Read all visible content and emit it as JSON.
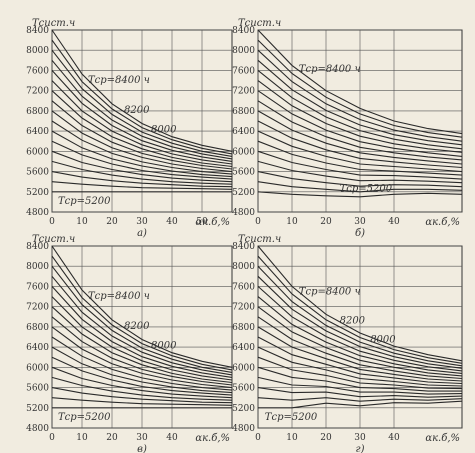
{
  "chart_data": [
    {
      "type": "line",
      "caption": "а)",
      "ylabel": "Тсист.ч",
      "xlabel": "αк.б,%",
      "x": [
        0,
        10,
        20,
        30,
        40,
        50,
        60
      ],
      "xlim": [
        0,
        60
      ],
      "ylim": [
        4800,
        8400
      ],
      "xticks": [
        0,
        10,
        20,
        30,
        40,
        50
      ],
      "yticks": [
        4800,
        5200,
        5600,
        6000,
        6400,
        6800,
        7200,
        7600,
        8000,
        8400
      ],
      "grid": true,
      "color": "#2a2a2a",
      "series": [
        {
          "name": "Tср=8400 ч",
          "values": [
            8400,
            7530,
            6940,
            6550,
            6290,
            6120,
            6000
          ]
        },
        {
          "name": "8200",
          "values": [
            8200,
            7380,
            6840,
            6470,
            6230,
            6060,
            5950
          ]
        },
        {
          "name": "8000",
          "values": [
            8000,
            7240,
            6730,
            6380,
            6160,
            6000,
            5900
          ]
        },
        {
          "values": [
            7800,
            7090,
            6620,
            6300,
            6090,
            5950,
            5850
          ]
        },
        {
          "values": [
            7600,
            6950,
            6510,
            6210,
            6020,
            5890,
            5800
          ]
        },
        {
          "values": [
            7400,
            6800,
            6400,
            6130,
            5950,
            5830,
            5750
          ]
        },
        {
          "values": [
            7200,
            6660,
            6290,
            6050,
            5880,
            5770,
            5700
          ]
        },
        {
          "values": [
            7000,
            6510,
            6180,
            5960,
            5820,
            5720,
            5650
          ]
        },
        {
          "values": [
            6800,
            6360,
            6070,
            5880,
            5750,
            5660,
            5600
          ]
        },
        {
          "values": [
            6600,
            6220,
            5960,
            5790,
            5680,
            5600,
            5550
          ]
        },
        {
          "values": [
            6400,
            6070,
            5850,
            5710,
            5610,
            5540,
            5500
          ]
        },
        {
          "values": [
            6200,
            5930,
            5750,
            5620,
            5540,
            5490,
            5450
          ]
        },
        {
          "values": [
            6000,
            5780,
            5640,
            5540,
            5470,
            5430,
            5400
          ]
        },
        {
          "values": [
            5800,
            5640,
            5530,
            5450,
            5400,
            5370,
            5350
          ]
        },
        {
          "values": [
            5600,
            5490,
            5420,
            5370,
            5340,
            5310,
            5300
          ]
        },
        {
          "values": [
            5400,
            5350,
            5310,
            5280,
            5270,
            5260,
            5250
          ]
        },
        {
          "name": "Tср=5200",
          "values": [
            5200,
            5200,
            5200,
            5200,
            5200,
            5200,
            5200
          ]
        }
      ]
    },
    {
      "type": "line",
      "caption": "б)",
      "ylabel": "Тсист.ч",
      "xlabel": "αк.б,%",
      "x": [
        0,
        10,
        20,
        30,
        40,
        50,
        60
      ],
      "xlim": [
        0,
        60
      ],
      "ylim": [
        4800,
        8400
      ],
      "xticks": [
        0,
        10,
        20,
        30,
        40
      ],
      "yticks": [
        4800,
        5200,
        5600,
        6000,
        6400,
        6800,
        7200,
        7600,
        8000,
        8400
      ],
      "grid": true,
      "color": "#2a2a2a",
      "series": [
        {
          "name": "Tср=8400 ч",
          "values": [
            8400,
            7700,
            7200,
            6850,
            6600,
            6450,
            6350
          ]
        },
        {
          "values": [
            8200,
            7540,
            7070,
            6740,
            6510,
            6370,
            6280
          ]
        },
        {
          "values": [
            8000,
            7380,
            6940,
            6630,
            6420,
            6290,
            6200
          ]
        },
        {
          "values": [
            7800,
            7220,
            6810,
            6520,
            6330,
            6210,
            6130
          ]
        },
        {
          "values": [
            7600,
            7060,
            6680,
            6410,
            6240,
            6130,
            6050
          ]
        },
        {
          "values": [
            7400,
            6900,
            6550,
            6300,
            6150,
            6050,
            5980
          ]
        },
        {
          "values": [
            7200,
            6740,
            6420,
            6190,
            6060,
            5970,
            5900
          ]
        },
        {
          "values": [
            7000,
            6580,
            6290,
            6080,
            5970,
            5890,
            5830
          ]
        },
        {
          "values": [
            6800,
            6420,
            6160,
            5970,
            5880,
            5810,
            5750
          ]
        },
        {
          "values": [
            6600,
            6260,
            6030,
            5860,
            5790,
            5730,
            5680
          ]
        },
        {
          "values": [
            6400,
            6100,
            5900,
            5750,
            5700,
            5650,
            5600
          ]
        },
        {
          "values": [
            6200,
            5940,
            5770,
            5640,
            5610,
            5570,
            5530
          ]
        },
        {
          "values": [
            6000,
            5780,
            5640,
            5530,
            5520,
            5490,
            5450
          ]
        },
        {
          "values": [
            5800,
            5620,
            5510,
            5420,
            5430,
            5410,
            5380
          ]
        },
        {
          "values": [
            5600,
            5460,
            5380,
            5310,
            5340,
            5330,
            5300
          ]
        },
        {
          "values": [
            5400,
            5300,
            5250,
            5200,
            5250,
            5250,
            5230
          ]
        },
        {
          "name": "Tср=5200",
          "values": [
            5200,
            5150,
            5120,
            5100,
            5150,
            5170,
            5150
          ]
        }
      ]
    },
    {
      "type": "line",
      "caption": "в)",
      "ylabel": "Тсист.ч",
      "xlabel": "αк.б,%",
      "x": [
        0,
        10,
        20,
        30,
        40,
        50,
        60
      ],
      "xlim": [
        0,
        60
      ],
      "ylim": [
        4800,
        8400
      ],
      "xticks": [
        0,
        10,
        20,
        30,
        40
      ],
      "yticks": [
        4800,
        5200,
        5600,
        6000,
        6400,
        6800,
        7200,
        7600,
        8000,
        8400
      ],
      "grid": true,
      "color": "#2a2a2a",
      "series": [
        {
          "name": "Tср=8400 ч",
          "values": [
            8400,
            7530,
            6940,
            6550,
            6290,
            6120,
            6000
          ]
        },
        {
          "name": "8200",
          "values": [
            8200,
            7380,
            6840,
            6470,
            6230,
            6060,
            5950
          ]
        },
        {
          "name": "8000",
          "values": [
            8000,
            7240,
            6730,
            6380,
            6160,
            6000,
            5900
          ]
        },
        {
          "values": [
            7800,
            7090,
            6620,
            6300,
            6090,
            5950,
            5850
          ]
        },
        {
          "values": [
            7600,
            6950,
            6510,
            6210,
            6020,
            5890,
            5800
          ]
        },
        {
          "values": [
            7400,
            6800,
            6400,
            6130,
            5950,
            5830,
            5750
          ]
        },
        {
          "values": [
            7200,
            6660,
            6290,
            6050,
            5880,
            5770,
            5700
          ]
        },
        {
          "values": [
            7000,
            6510,
            6180,
            5960,
            5820,
            5720,
            5650
          ]
        },
        {
          "values": [
            6800,
            6360,
            6070,
            5880,
            5750,
            5660,
            5600
          ]
        },
        {
          "values": [
            6600,
            6220,
            5960,
            5790,
            5680,
            5600,
            5550
          ]
        },
        {
          "values": [
            6400,
            6070,
            5850,
            5710,
            5610,
            5540,
            5500
          ]
        },
        {
          "values": [
            6200,
            5930,
            5750,
            5620,
            5540,
            5490,
            5450
          ]
        },
        {
          "values": [
            6000,
            5780,
            5640,
            5540,
            5470,
            5430,
            5400
          ]
        },
        {
          "values": [
            5800,
            5640,
            5530,
            5450,
            5400,
            5370,
            5350
          ]
        },
        {
          "values": [
            5600,
            5490,
            5420,
            5370,
            5340,
            5310,
            5300
          ]
        },
        {
          "values": [
            5400,
            5350,
            5310,
            5280,
            5270,
            5260,
            5250
          ]
        },
        {
          "name": "Tср=5200",
          "values": [
            5200,
            5200,
            5200,
            5200,
            5200,
            5200,
            5200
          ]
        }
      ]
    },
    {
      "type": "line",
      "caption": "г)",
      "ylabel": "Тсист.ч",
      "xlabel": "αк.б,%",
      "x": [
        0,
        10,
        20,
        30,
        40,
        50,
        60
      ],
      "xlim": [
        0,
        60
      ],
      "ylim": [
        4800,
        8400
      ],
      "xticks": [
        0,
        10,
        20,
        30,
        40
      ],
      "yticks": [
        4800,
        5200,
        5600,
        6000,
        6400,
        6800,
        7200,
        7600,
        8000,
        8400
      ],
      "grid": true,
      "color": "#2a2a2a",
      "series": [
        {
          "name": "Tср=8400 ч",
          "values": [
            8400,
            7600,
            7050,
            6680,
            6420,
            6250,
            6130
          ]
        },
        {
          "name": "8200",
          "values": [
            8200,
            7450,
            6940,
            6590,
            6350,
            6190,
            6080
          ]
        },
        {
          "name": "8000",
          "values": [
            8000,
            7300,
            6830,
            6500,
            6280,
            6130,
            6030
          ]
        },
        {
          "values": [
            7800,
            7150,
            6720,
            6410,
            6210,
            6070,
            5980
          ]
        },
        {
          "values": [
            7600,
            7000,
            6610,
            6320,
            6140,
            6010,
            5930
          ]
        },
        {
          "values": [
            7400,
            6850,
            6500,
            6230,
            6070,
            5950,
            5880
          ]
        },
        {
          "values": [
            7200,
            6700,
            6390,
            6140,
            6000,
            5890,
            5830
          ]
        },
        {
          "values": [
            7000,
            6550,
            6280,
            6050,
            5930,
            5830,
            5780
          ]
        },
        {
          "values": [
            6800,
            6400,
            6170,
            5960,
            5860,
            5770,
            5730
          ]
        },
        {
          "values": [
            6600,
            6250,
            6060,
            5870,
            5790,
            5710,
            5680
          ]
        },
        {
          "values": [
            6400,
            6100,
            5950,
            5780,
            5720,
            5650,
            5630
          ]
        },
        {
          "values": [
            6200,
            5950,
            5840,
            5690,
            5650,
            5590,
            5580
          ]
        },
        {
          "values": [
            6000,
            5800,
            5730,
            5600,
            5580,
            5530,
            5530
          ]
        },
        {
          "values": [
            5800,
            5650,
            5620,
            5510,
            5510,
            5470,
            5480
          ]
        },
        {
          "values": [
            5600,
            5500,
            5510,
            5420,
            5440,
            5410,
            5430
          ]
        },
        {
          "values": [
            5400,
            5350,
            5400,
            5330,
            5370,
            5350,
            5380
          ]
        },
        {
          "name": "Tср=5200",
          "values": [
            5200,
            5200,
            5290,
            5240,
            5300,
            5290,
            5330
          ]
        }
      ]
    }
  ]
}
